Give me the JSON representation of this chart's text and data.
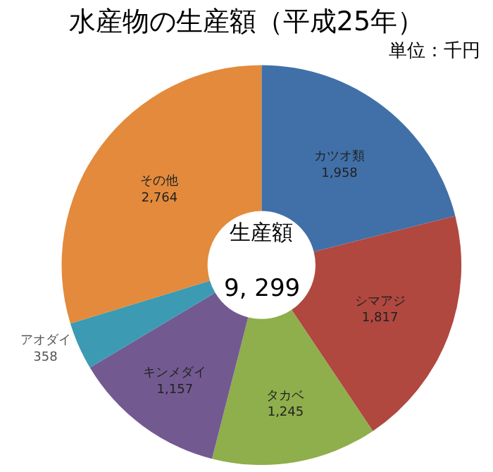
{
  "chart_data": {
    "type": "donut",
    "title": "水産物の生産額（平成25年）",
    "subtitle": "単位：千円",
    "categories": [
      "カツオ類",
      "シマアジ",
      "タカベ",
      "キンメダイ",
      "アオダイ",
      "その他"
    ],
    "values": [
      1958,
      1817,
      1245,
      1157,
      358,
      2764
    ],
    "value_labels": [
      "1,958",
      "1,817",
      "1,245",
      "1,157",
      "358",
      "2,764"
    ],
    "colors": [
      "#4170a8",
      "#b0483f",
      "#8fae4c",
      "#725a91",
      "#3c9ab2",
      "#e38a3c"
    ],
    "annotations": [
      "生産額",
      "9, 299"
    ]
  }
}
